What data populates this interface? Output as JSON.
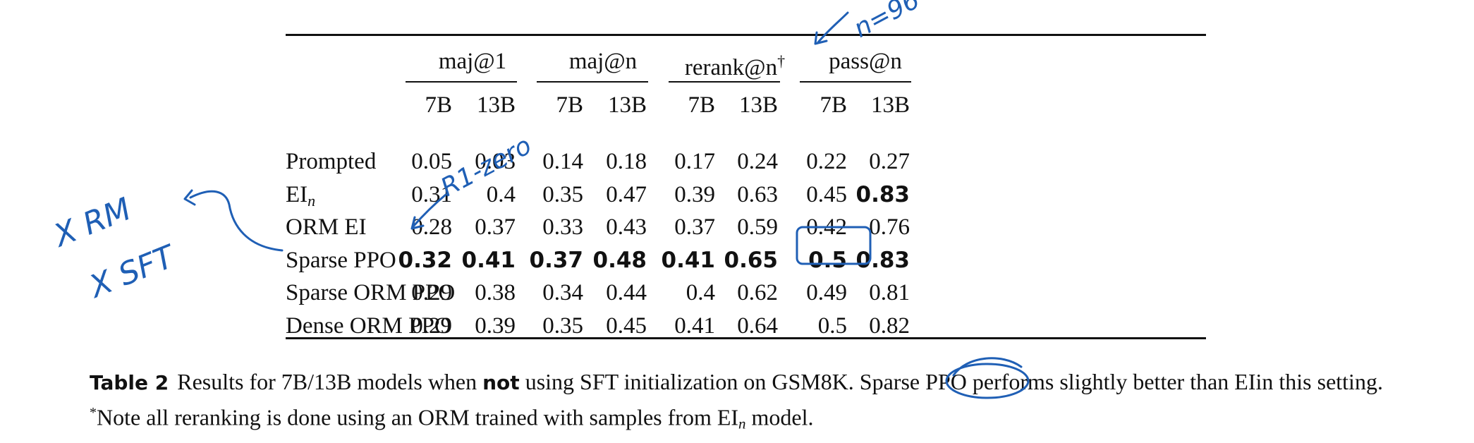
{
  "table": {
    "groups": [
      {
        "label": "maj@1"
      },
      {
        "label": "maj@n"
      },
      {
        "label": "rerank@n",
        "mark": "†"
      },
      {
        "label": "pass@n"
      }
    ],
    "subheaders": [
      "7B",
      "13B",
      "7B",
      "13B",
      "7B",
      "13B",
      "7B",
      "13B"
    ],
    "rows": [
      {
        "label": "Prompted",
        "values": [
          "0.05",
          "0.03",
          "0.14",
          "0.18",
          "0.17",
          "0.24",
          "0.22",
          "0.27"
        ],
        "bold": [
          false,
          false,
          false,
          false,
          false,
          false,
          false,
          false
        ]
      },
      {
        "label": "EI",
        "label_sub": "n",
        "values": [
          "0.31",
          "0.4",
          "0.35",
          "0.47",
          "0.39",
          "0.63",
          "0.45",
          "0.83"
        ],
        "bold": [
          false,
          false,
          false,
          false,
          false,
          false,
          false,
          true
        ]
      },
      {
        "label": "ORM EI",
        "values": [
          "0.28",
          "0.37",
          "0.33",
          "0.43",
          "0.37",
          "0.59",
          "0.42",
          "0.76"
        ],
        "bold": [
          false,
          false,
          false,
          false,
          false,
          false,
          false,
          false
        ]
      },
      {
        "label": "Sparse PPO",
        "values": [
          "0.32",
          "0.41",
          "0.37",
          "0.48",
          "0.41",
          "0.65",
          "0.5",
          "0.83"
        ],
        "bold": [
          true,
          true,
          true,
          true,
          true,
          true,
          true,
          true
        ]
      },
      {
        "label": "Sparse ORM PPO",
        "values": [
          "0.29",
          "0.38",
          "0.34",
          "0.44",
          "0.4",
          "0.62",
          "0.49",
          "0.81"
        ],
        "bold": [
          false,
          false,
          false,
          false,
          false,
          false,
          false,
          false
        ]
      },
      {
        "label": "Dense ORM PPO",
        "values": [
          "0.29",
          "0.39",
          "0.35",
          "0.45",
          "0.41",
          "0.64",
          "0.5",
          "0.82"
        ],
        "bold": [
          false,
          false,
          false,
          false,
          false,
          false,
          false,
          false
        ]
      }
    ]
  },
  "caption": {
    "table_label": "Table 2",
    "part1": "Results for 7B/13B models when",
    "bold_word": "not",
    "part2": "using SFT initialization on GSM8K. Sparse PPO performs slightly better than EIin this setting.",
    "note_mark": "*",
    "part3": "Note all reranking is done using an ORM trained with samples from EI",
    "part3_sub": "n",
    "part4": "model."
  },
  "annotations": {
    "n_equals": "n=96",
    "r1_zero": "R1-zero",
    "x_rm": "X RM",
    "x_sft": "X SFT",
    "ink_color": "#1f5fb5"
  }
}
